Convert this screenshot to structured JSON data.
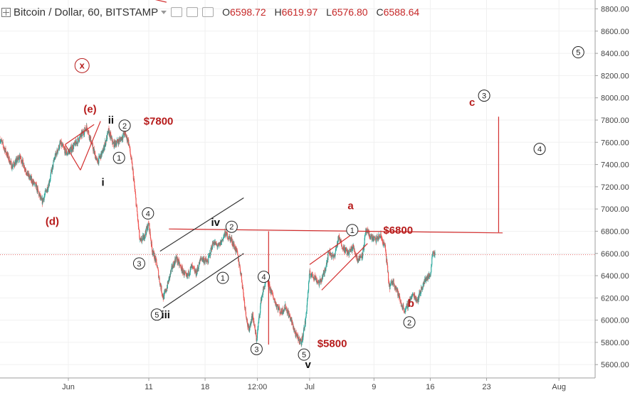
{
  "header": {
    "symbol": "Bitcoin / Dollar, 60, BITSTAMP",
    "open_label": "O",
    "open": "6598.72",
    "high_label": "H",
    "high": "6619.97",
    "low_label": "L",
    "low": "6576.80",
    "close_label": "C",
    "close": "6588.64",
    "icons": [
      "crosshair-plus-icon",
      "dropdown-caret-icon",
      "eye-icon",
      "settings-icon",
      "close-icon"
    ]
  },
  "colors": {
    "up": "#26a69a",
    "down": "#ef5350",
    "annotation_red": "#b71c1c",
    "line_red": "#d32f2f",
    "channel_black": "#333333",
    "current_price_line": "#e57373",
    "axis_text": "#444444"
  },
  "chart_data": {
    "type": "candlestick",
    "y_axis_ticks": [
      "5600.00",
      "5800.00",
      "6000.00",
      "6200.00",
      "6400.00",
      "6600.00",
      "6800.00",
      "7000.00",
      "7200.00",
      "7400.00",
      "7600.00",
      "7800.00",
      "8000.00",
      "8200.00",
      "8400.00",
      "8600.00",
      "8800.00"
    ],
    "y_tick_values": [
      5600,
      5800,
      6000,
      6200,
      6400,
      6600,
      6800,
      7000,
      7200,
      7400,
      7600,
      7800,
      8000,
      8200,
      8400,
      8600,
      8800
    ],
    "ylim": [
      5480,
      8880
    ],
    "x_axis_ticks": [
      {
        "label": "Jun",
        "day": 1
      },
      {
        "label": "11",
        "day": 11
      },
      {
        "label": "18",
        "day": 18
      },
      {
        "label": "12:00",
        "day": 24.5
      },
      {
        "label": "Jul",
        "day": 31
      },
      {
        "label": "9",
        "day": 39
      },
      {
        "label": "16",
        "day": 46
      },
      {
        "label": "23",
        "day": 53
      },
      {
        "label": "Aug",
        "day": 62
      }
    ],
    "xlim": [
      -7.5,
      66.5
    ],
    "current_price": 6588.64,
    "price_path": [
      [
        -7.5,
        7630
      ],
      [
        -6.8,
        7520
      ],
      [
        -6,
        7380
      ],
      [
        -5,
        7470
      ],
      [
        -4,
        7300
      ],
      [
        -3,
        7200
      ],
      [
        -2.3,
        7060
      ],
      [
        -1.5,
        7210
      ],
      [
        -0.7,
        7460
      ],
      [
        0,
        7590
      ],
      [
        0.8,
        7500
      ],
      [
        1.5,
        7550
      ],
      [
        2.5,
        7650
      ],
      [
        3.3,
        7740
      ],
      [
        4,
        7560
      ],
      [
        4.6,
        7420
      ],
      [
        5.3,
        7520
      ],
      [
        6,
        7700
      ],
      [
        6.6,
        7580
      ],
      [
        7.4,
        7620
      ],
      [
        8,
        7680
      ],
      [
        8.5,
        7600
      ],
      [
        9,
        7350
      ],
      [
        9.5,
        7000
      ],
      [
        9.9,
        6700
      ],
      [
        10.4,
        6750
      ],
      [
        11,
        6870
      ],
      [
        11.4,
        6640
      ],
      [
        12,
        6500
      ],
      [
        12.4,
        6330
      ],
      [
        12.8,
        6200
      ],
      [
        13.2,
        6280
      ],
      [
        13.8,
        6450
      ],
      [
        14.4,
        6560
      ],
      [
        15,
        6470
      ],
      [
        15.7,
        6380
      ],
      [
        16.3,
        6480
      ],
      [
        16.9,
        6420
      ],
      [
        17.5,
        6560
      ],
      [
        18.3,
        6520
      ],
      [
        19,
        6700
      ],
      [
        19.7,
        6660
      ],
      [
        20.5,
        6780
      ],
      [
        21.3,
        6720
      ],
      [
        22,
        6600
      ],
      [
        22.5,
        6400
      ],
      [
        22.9,
        6150
      ],
      [
        23.4,
        5900
      ],
      [
        23.9,
        6050
      ],
      [
        24.4,
        5820
      ],
      [
        25,
        6200
      ],
      [
        25.6,
        6370
      ],
      [
        26.2,
        6260
      ],
      [
        26.8,
        6150
      ],
      [
        27.4,
        6070
      ],
      [
        28,
        6120
      ],
      [
        28.7,
        6000
      ],
      [
        29.3,
        5860
      ],
      [
        30,
        5800
      ],
      [
        30.5,
        6000
      ],
      [
        31,
        6420
      ],
      [
        31.6,
        6390
      ],
      [
        32.2,
        6330
      ],
      [
        32.8,
        6420
      ],
      [
        33.4,
        6620
      ],
      [
        34,
        6560
      ],
      [
        34.6,
        6740
      ],
      [
        35.2,
        6650
      ],
      [
        35.8,
        6600
      ],
      [
        36.4,
        6660
      ],
      [
        37,
        6540
      ],
      [
        37.6,
        6600
      ],
      [
        38,
        6800
      ],
      [
        38.6,
        6750
      ],
      [
        39.2,
        6720
      ],
      [
        39.8,
        6760
      ],
      [
        40.4,
        6650
      ],
      [
        40.9,
        6300
      ],
      [
        41.4,
        6350
      ],
      [
        41.9,
        6260
      ],
      [
        42.4,
        6140
      ],
      [
        42.9,
        6080
      ],
      [
        43.4,
        6180
      ],
      [
        43.9,
        6230
      ],
      [
        44.4,
        6180
      ],
      [
        45,
        6300
      ],
      [
        45.5,
        6380
      ],
      [
        46,
        6400
      ],
      [
        46.3,
        6620
      ],
      [
        46.6,
        6589
      ]
    ],
    "annotations": [
      {
        "text": "x",
        "day": 2.7,
        "price": 8290,
        "circled": true,
        "color": "red"
      },
      {
        "text": "(e)",
        "day": 3.7,
        "price": 7900,
        "circled": false,
        "color": "red"
      },
      {
        "text": "(d)",
        "day": -1.0,
        "price": 6890,
        "circled": false,
        "color": "red"
      },
      {
        "text": "ii",
        "day": 6.3,
        "price": 7800,
        "circled": false,
        "color": "black"
      },
      {
        "text": "2",
        "day": 8.0,
        "price": 7750,
        "circled": true,
        "color": "black"
      },
      {
        "text": "1",
        "day": 7.3,
        "price": 7460,
        "circled": true,
        "color": "black"
      },
      {
        "text": "i",
        "day": 5.3,
        "price": 7240,
        "circled": false,
        "color": "black"
      },
      {
        "text": "$7800",
        "day": 12.2,
        "price": 7790,
        "circled": false,
        "color": "red"
      },
      {
        "text": "4",
        "day": 10.9,
        "price": 6960,
        "circled": true,
        "color": "black"
      },
      {
        "text": "3",
        "day": 9.8,
        "price": 6510,
        "circled": true,
        "color": "black"
      },
      {
        "text": "5",
        "day": 12.0,
        "price": 6050,
        "circled": true,
        "color": "black"
      },
      {
        "text": "iii",
        "day": 13.1,
        "price": 6050,
        "circled": false,
        "color": "black"
      },
      {
        "text": "iv",
        "day": 19.3,
        "price": 6880,
        "circled": false,
        "color": "black"
      },
      {
        "text": "2",
        "day": 21.3,
        "price": 6840,
        "circled": true,
        "color": "black"
      },
      {
        "text": "1",
        "day": 20.2,
        "price": 6380,
        "circled": true,
        "color": "black"
      },
      {
        "text": "4",
        "day": 25.3,
        "price": 6390,
        "circled": true,
        "color": "black"
      },
      {
        "text": "3",
        "day": 24.4,
        "price": 5740,
        "circled": true,
        "color": "black"
      },
      {
        "text": "5",
        "day": 30.3,
        "price": 5690,
        "circled": true,
        "color": "black"
      },
      {
        "text": "v",
        "day": 30.8,
        "price": 5600,
        "circled": false,
        "color": "black"
      },
      {
        "text": "$5800",
        "day": 33.8,
        "price": 5790,
        "circled": false,
        "color": "red"
      },
      {
        "text": "a",
        "day": 36.1,
        "price": 7030,
        "circled": false,
        "color": "red"
      },
      {
        "text": "1",
        "day": 36.3,
        "price": 6810,
        "circled": true,
        "color": "black"
      },
      {
        "text": "$6800",
        "day": 42.0,
        "price": 6810,
        "circled": false,
        "color": "red"
      },
      {
        "text": "b",
        "day": 43.6,
        "price": 6150,
        "circled": false,
        "color": "red"
      },
      {
        "text": "2",
        "day": 43.4,
        "price": 5980,
        "circled": true,
        "color": "black"
      },
      {
        "text": "c",
        "day": 51.2,
        "price": 7960,
        "circled": false,
        "color": "red"
      },
      {
        "text": "3",
        "day": 52.7,
        "price": 8020,
        "circled": true,
        "color": "black"
      },
      {
        "text": "5",
        "day": 64.4,
        "price": 8410,
        "circled": true,
        "color": "black"
      },
      {
        "text": "4",
        "day": 59.6,
        "price": 7540,
        "circled": true,
        "color": "black"
      }
    ],
    "lines": [
      {
        "name": "neckline-6800",
        "color": "red",
        "points": [
          [
            13.5,
            6820
          ],
          [
            55,
            6785
          ]
        ]
      },
      {
        "name": "projection-up",
        "color": "red",
        "points": [
          [
            54.5,
            6790
          ],
          [
            54.5,
            7830
          ]
        ]
      },
      {
        "name": "spike-drop",
        "color": "red",
        "points": [
          [
            25.9,
            5780
          ],
          [
            25.9,
            6800
          ]
        ]
      },
      {
        "name": "wedge-e-upper",
        "color": "red",
        "points": [
          [
            0.6,
            7580
          ],
          [
            4.2,
            7760
          ]
        ]
      },
      {
        "name": "wedge-e-lower",
        "color": "red",
        "points": [
          [
            2.5,
            7350
          ],
          [
            5.0,
            7790
          ]
        ]
      },
      {
        "name": "wedge-e-upper2",
        "color": "red",
        "points": [
          [
            0.6,
            7580
          ],
          [
            2.5,
            7350
          ]
        ]
      },
      {
        "name": "channel-upper",
        "color": "black",
        "points": [
          [
            12.4,
            6620
          ],
          [
            22.8,
            7100
          ]
        ]
      },
      {
        "name": "channel-lower",
        "color": "black",
        "points": [
          [
            12.8,
            6110
          ],
          [
            22.8,
            6600
          ]
        ]
      },
      {
        "name": "channel-a-upper",
        "color": "red",
        "points": [
          [
            31.0,
            6500
          ],
          [
            36.6,
            6790
          ]
        ]
      },
      {
        "name": "channel-a-lower",
        "color": "red",
        "points": [
          [
            32.5,
            6270
          ],
          [
            38.2,
            6690
          ]
        ]
      },
      {
        "name": "arrow-top",
        "color": "red",
        "points": [
          [
            8.5,
            8940
          ],
          [
            13.2,
            8860
          ]
        ]
      }
    ]
  }
}
